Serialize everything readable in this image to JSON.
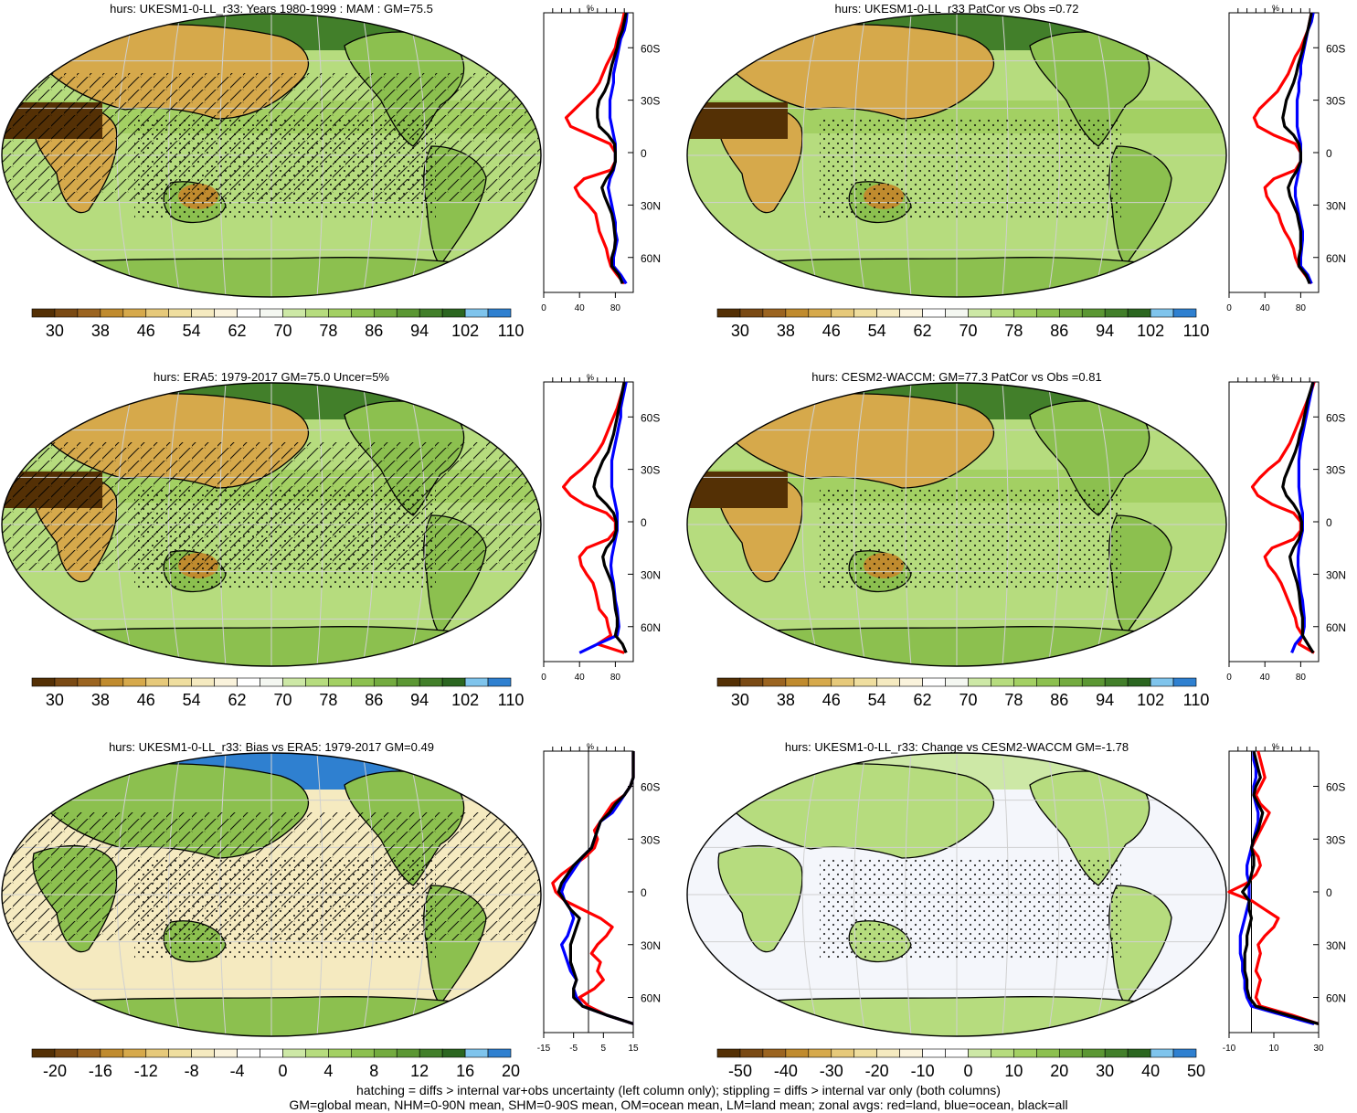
{
  "colors": {
    "abs_palette": [
      "#543005",
      "#7a4a14",
      "#9b6420",
      "#c08b2e",
      "#d6a94b",
      "#e6c97a",
      "#efde9f",
      "#f5eac0",
      "#faf3dc",
      "#ffffff",
      "#f4f7f1",
      "#cde8a6",
      "#b6dc7e",
      "#a3d063",
      "#8cc04f",
      "#73ab3f",
      "#5b9733",
      "#427f2a",
      "#2b6620",
      "#7fc4ec",
      "#2f80d0"
    ],
    "diff_palette": [
      "#543005",
      "#7a4a14",
      "#9b6420",
      "#c08b2e",
      "#d6a94b",
      "#e6c97a",
      "#efde9f",
      "#f5eac0",
      "#faf3dc",
      "#ffffff",
      "#ffffff",
      "#cde8a6",
      "#b6dc7e",
      "#a3d063",
      "#8cc04f",
      "#73ab3f",
      "#5b9733",
      "#427f2a",
      "#2b6620",
      "#7fc4ec",
      "#2f80d0"
    ],
    "land": "#ff0000",
    "ocean": "#0000ff",
    "all": "#000000"
  },
  "panels": [
    {
      "title": "hurs: UKESM1-0-LL_r33: Years 1980-1999 : MAM : GM=75.5",
      "colorbar_labels": [
        "30",
        "38",
        "46",
        "54",
        "62",
        "70",
        "78",
        "86",
        "94",
        "102",
        "110"
      ],
      "palette": "abs",
      "hatching": true,
      "stippling": true,
      "zonal_unit": "%",
      "zonal_ticks": [
        "0",
        "40",
        "80"
      ],
      "lat_labels": [
        "60N",
        "30N",
        "0",
        "30S",
        "60S"
      ]
    },
    {
      "title": "hurs: UKESM1-0-LL_r33 PatCor vs Obs =0.72",
      "colorbar_labels": [
        "30",
        "38",
        "46",
        "54",
        "62",
        "70",
        "78",
        "86",
        "94",
        "102",
        "110"
      ],
      "palette": "abs",
      "hatching": false,
      "stippling": true,
      "zonal_unit": "%",
      "zonal_ticks": [
        "0",
        "40",
        "80"
      ],
      "lat_labels": [
        "60N",
        "30N",
        "0",
        "30S",
        "60S"
      ]
    },
    {
      "title": "hurs: ERA5: 1979-2017 GM=75.0 Uncer=5%",
      "colorbar_labels": [
        "30",
        "38",
        "46",
        "54",
        "62",
        "70",
        "78",
        "86",
        "94",
        "102",
        "110"
      ],
      "palette": "abs",
      "hatching": true,
      "stippling": true,
      "zonal_unit": "%",
      "zonal_ticks": [
        "0",
        "40",
        "80"
      ],
      "lat_labels": [
        "60N",
        "30N",
        "0",
        "30S",
        "60S"
      ]
    },
    {
      "title": "hurs: CESM2-WACCM: GM=77.3 PatCor vs Obs =0.81",
      "colorbar_labels": [
        "30",
        "38",
        "46",
        "54",
        "62",
        "70",
        "78",
        "86",
        "94",
        "102",
        "110"
      ],
      "palette": "abs",
      "hatching": false,
      "stippling": true,
      "zonal_unit": "%",
      "zonal_ticks": [
        "0",
        "40",
        "80"
      ],
      "lat_labels": [
        "60N",
        "30N",
        "0",
        "30S",
        "60S"
      ]
    },
    {
      "title": "hurs: UKESM1-0-LL_r33: Bias vs ERA5: 1979-2017 GM=0.49",
      "colorbar_labels": [
        "-20",
        "-16",
        "-12",
        "-8",
        "-4",
        "0",
        "4",
        "8",
        "12",
        "16",
        "20"
      ],
      "palette": "diff",
      "hatching": true,
      "stippling": true,
      "zonal_unit": "%",
      "zonal_ticks": [
        "-15",
        "-5",
        "5",
        "15"
      ],
      "lat_labels": [
        "60N",
        "30N",
        "0",
        "30S",
        "60S"
      ]
    },
    {
      "title": "hurs: UKESM1-0-LL_r33: Change vs CESM2-WACCM GM=-1.78",
      "colorbar_labels": [
        "-50",
        "-40",
        "-30",
        "-20",
        "-10",
        "0",
        "10",
        "20",
        "30",
        "40",
        "50"
      ],
      "palette": "diff",
      "hatching": false,
      "stippling": true,
      "zonal_unit": "%",
      "zonal_ticks": [
        "-10",
        "10",
        "30"
      ],
      "lat_labels": [
        "60N",
        "30N",
        "0",
        "30S",
        "60S"
      ]
    }
  ],
  "chart_data": [
    {
      "type": "line",
      "title": "hurs: UKESM1-0-LL_r33: Years 1980-1999 : MAM : GM=75.5",
      "xlabel": "%",
      "xlim": [
        0,
        100
      ],
      "ylim": [
        -80,
        80
      ],
      "x_ticks": [
        0,
        40,
        80
      ],
      "y_ticks": [
        -60,
        -30,
        0,
        30,
        60
      ],
      "lat": [
        -75,
        -70,
        -65,
        -60,
        -55,
        -50,
        -45,
        -40,
        -35,
        -30,
        -25,
        -20,
        -15,
        -10,
        -5,
        0,
        5,
        10,
        15,
        20,
        25,
        30,
        35,
        40,
        45,
        50,
        55,
        60,
        65,
        70,
        75,
        80
      ],
      "series": [
        {
          "name": "land",
          "values": [
            90,
            82,
            75,
            72,
            70,
            66,
            62,
            60,
            58,
            50,
            40,
            35,
            45,
            75,
            80,
            80,
            74,
            52,
            30,
            25,
            35,
            45,
            55,
            62,
            66,
            70,
            75,
            80,
            82,
            85,
            88,
            90
          ]
        },
        {
          "name": "ocean",
          "values": [
            92,
            86,
            78,
            78,
            80,
            82,
            80,
            80,
            78,
            76,
            74,
            72,
            74,
            78,
            80,
            80,
            80,
            78,
            76,
            74,
            74,
            74,
            76,
            78,
            78,
            80,
            82,
            84,
            86,
            90,
            92,
            93
          ]
        },
        {
          "name": "all",
          "values": [
            88,
            84,
            76,
            76,
            79,
            80,
            79,
            78,
            76,
            72,
            68,
            65,
            70,
            77,
            80,
            80,
            79,
            72,
            62,
            60,
            60,
            62,
            68,
            72,
            74,
            76,
            79,
            82,
            84,
            88,
            90,
            92
          ]
        }
      ]
    },
    {
      "type": "line",
      "title": "hurs: UKESM1-0-LL_r33 PatCor vs Obs =0.72",
      "xlabel": "%",
      "xlim": [
        0,
        100
      ],
      "ylim": [
        -80,
        80
      ],
      "x_ticks": [
        0,
        40,
        80
      ],
      "y_ticks": [
        -60,
        -30,
        0,
        30,
        60
      ],
      "lat": [
        -75,
        -70,
        -65,
        -60,
        -55,
        -50,
        -45,
        -40,
        -35,
        -30,
        -25,
        -20,
        -15,
        -10,
        -5,
        0,
        5,
        10,
        15,
        20,
        25,
        30,
        35,
        40,
        45,
        50,
        55,
        60,
        65,
        70,
        75,
        80
      ],
      "series": [
        {
          "name": "land",
          "values": [
            92,
            85,
            78,
            74,
            72,
            68,
            62,
            58,
            55,
            48,
            42,
            40,
            50,
            74,
            80,
            80,
            74,
            50,
            32,
            28,
            34,
            44,
            54,
            60,
            66,
            70,
            74,
            80,
            84,
            88,
            90,
            92
          ]
        },
        {
          "name": "ocean",
          "values": [
            92,
            88,
            80,
            80,
            81,
            82,
            82,
            80,
            78,
            76,
            74,
            74,
            76,
            78,
            80,
            80,
            80,
            78,
            76,
            76,
            76,
            76,
            78,
            78,
            80,
            80,
            82,
            84,
            86,
            88,
            92,
            94
          ]
        },
        {
          "name": "all",
          "values": [
            90,
            86,
            78,
            78,
            80,
            80,
            80,
            78,
            76,
            72,
            68,
            66,
            70,
            76,
            80,
            80,
            78,
            72,
            62,
            60,
            62,
            64,
            68,
            72,
            75,
            77,
            80,
            83,
            85,
            88,
            90,
            92
          ]
        }
      ]
    },
    {
      "type": "line",
      "title": "hurs: ERA5: 1979-2017 GM=75.0 Uncer=5%",
      "xlabel": "%",
      "xlim": [
        0,
        100
      ],
      "ylim": [
        -80,
        80
      ],
      "x_ticks": [
        0,
        40,
        80
      ],
      "y_ticks": [
        -60,
        -30,
        0,
        30,
        60
      ],
      "lat": [
        -75,
        -70,
        -65,
        -60,
        -55,
        -50,
        -45,
        -40,
        -35,
        -30,
        -25,
        -20,
        -15,
        -10,
        -5,
        0,
        5,
        10,
        15,
        20,
        25,
        30,
        35,
        40,
        45,
        50,
        55,
        60,
        65,
        70,
        75,
        80
      ],
      "series": [
        {
          "name": "land",
          "values": [
            90,
            60,
            75,
            72,
            70,
            62,
            60,
            58,
            55,
            48,
            42,
            40,
            48,
            72,
            80,
            80,
            70,
            45,
            30,
            22,
            30,
            42,
            52,
            60,
            66,
            70,
            74,
            78,
            82,
            85,
            88,
            90
          ]
        },
        {
          "name": "ocean",
          "values": [
            40,
            60,
            82,
            84,
            83,
            82,
            80,
            79,
            78,
            76,
            75,
            76,
            78,
            80,
            82,
            82,
            82,
            80,
            78,
            76,
            76,
            76,
            76,
            78,
            80,
            82,
            84,
            86,
            86,
            88,
            90,
            92
          ]
        },
        {
          "name": "all",
          "values": [
            92,
            88,
            80,
            82,
            82,
            80,
            79,
            78,
            76,
            72,
            68,
            66,
            70,
            78,
            81,
            81,
            78,
            70,
            60,
            56,
            58,
            62,
            66,
            72,
            75,
            78,
            80,
            82,
            84,
            86,
            88,
            90
          ]
        }
      ]
    },
    {
      "type": "line",
      "title": "hurs: CESM2-WACCM: GM=77.3 PatCor vs Obs =0.81",
      "xlabel": "%",
      "xlim": [
        0,
        100
      ],
      "ylim": [
        -80,
        80
      ],
      "x_ticks": [
        0,
        40,
        80
      ],
      "y_ticks": [
        -60,
        -30,
        0,
        30,
        60
      ],
      "lat": [
        -75,
        -70,
        -65,
        -60,
        -55,
        -50,
        -45,
        -40,
        -35,
        -30,
        -25,
        -20,
        -15,
        -10,
        -5,
        0,
        5,
        10,
        15,
        20,
        25,
        30,
        35,
        40,
        45,
        50,
        55,
        60,
        65,
        70,
        75,
        80
      ],
      "series": [
        {
          "name": "land",
          "values": [
            95,
            78,
            82,
            76,
            74,
            70,
            66,
            62,
            58,
            52,
            44,
            40,
            48,
            72,
            80,
            80,
            72,
            48,
            32,
            26,
            34,
            44,
            56,
            62,
            68,
            72,
            76,
            80,
            84,
            88,
            92,
            95
          ]
        },
        {
          "name": "ocean",
          "values": [
            70,
            74,
            82,
            84,
            84,
            83,
            82,
            80,
            79,
            78,
            77,
            77,
            78,
            80,
            82,
            82,
            82,
            80,
            79,
            78,
            78,
            78,
            78,
            79,
            80,
            82,
            84,
            86,
            88,
            90,
            92,
            94
          ]
        },
        {
          "name": "all",
          "values": [
            94,
            88,
            82,
            82,
            82,
            80,
            79,
            78,
            76,
            73,
            70,
            68,
            72,
            78,
            81,
            81,
            78,
            72,
            64,
            60,
            62,
            66,
            70,
            74,
            77,
            79,
            82,
            84,
            86,
            88,
            91,
            94
          ]
        }
      ]
    },
    {
      "type": "line",
      "title": "hurs: UKESM1-0-LL_r33: Bias vs ERA5: 1979-2017 GM=0.49",
      "xlabel": "%",
      "xlim": [
        -15,
        15
      ],
      "ylim": [
        -80,
        80
      ],
      "x_ticks": [
        -15,
        -5,
        5,
        15
      ],
      "y_ticks": [
        -60,
        -30,
        0,
        30,
        60
      ],
      "lat": [
        -75,
        -70,
        -65,
        -60,
        -55,
        -50,
        -45,
        -40,
        -35,
        -30,
        -25,
        -20,
        -15,
        -10,
        -5,
        0,
        5,
        10,
        15,
        20,
        25,
        30,
        35,
        40,
        45,
        50,
        55,
        60,
        65,
        70,
        75,
        80
      ],
      "series": [
        {
          "name": "land",
          "values": [
            15,
            6,
            0,
            -3,
            2,
            5,
            3,
            4,
            1,
            3,
            6,
            8,
            4,
            -2,
            -8,
            -11,
            -12,
            -9,
            -5,
            -1,
            2,
            3,
            2,
            4,
            6,
            8,
            12,
            14,
            15,
            15,
            15,
            15
          ]
        },
        {
          "name": "ocean",
          "values": [
            15,
            6,
            -2,
            -4,
            -5,
            -4,
            -6,
            -7,
            -8,
            -9,
            -7,
            -6,
            -5,
            -6,
            -8,
            -9,
            -8,
            -6,
            -4,
            -2,
            1,
            2,
            3,
            4,
            8,
            10,
            12,
            14,
            15,
            15,
            15,
            15
          ]
        },
        {
          "name": "all",
          "values": [
            15,
            6,
            -2,
            -5,
            -5,
            -4,
            -5,
            -6,
            -6,
            -6,
            -5,
            -4,
            -3,
            -6,
            -8,
            -10,
            -9,
            -7,
            -5,
            -2,
            1,
            2,
            3,
            4,
            7,
            9,
            12,
            14,
            15,
            15,
            15,
            15
          ]
        }
      ]
    },
    {
      "type": "line",
      "title": "hurs: UKESM1-0-LL_r33: Change vs CESM2-WACCM GM=-1.78",
      "xlabel": "%",
      "xlim": [
        -10,
        30
      ],
      "ylim": [
        -80,
        80
      ],
      "x_ticks": [
        -10,
        10,
        30
      ],
      "y_ticks": [
        -60,
        -30,
        0,
        30,
        60
      ],
      "lat": [
        -75,
        -70,
        -65,
        -60,
        -55,
        -50,
        -45,
        -40,
        -35,
        -30,
        -25,
        -20,
        -15,
        -10,
        -5,
        0,
        5,
        10,
        15,
        20,
        25,
        30,
        35,
        40,
        45,
        50,
        55,
        60,
        65,
        70,
        75,
        80
      ],
      "series": [
        {
          "name": "land",
          "values": [
            30,
            18,
            4,
            2,
            3,
            4,
            2,
            3,
            4,
            3,
            6,
            10,
            12,
            6,
            0,
            -10,
            -2,
            2,
            4,
            3,
            0,
            2,
            4,
            6,
            8,
            4,
            2,
            4,
            6,
            5,
            4,
            3
          ]
        },
        {
          "name": "ocean",
          "values": [
            28,
            14,
            0,
            -2,
            -3,
            -3,
            -4,
            -4,
            -5,
            -5,
            -5,
            -4,
            -3,
            -2,
            -1,
            -1,
            -1,
            -2,
            -2,
            -1,
            0,
            1,
            2,
            3,
            3,
            2,
            1,
            1,
            2,
            2,
            1,
            1
          ]
        },
        {
          "name": "all",
          "values": [
            30,
            16,
            2,
            -1,
            -2,
            -2,
            -3,
            -3,
            -3,
            -2,
            -2,
            -1,
            0,
            -1,
            -1,
            -4,
            -1,
            0,
            1,
            1,
            0,
            1,
            3,
            4,
            5,
            3,
            1,
            2,
            4,
            3,
            2,
            1
          ]
        }
      ]
    }
  ],
  "footer": {
    "line1": "hatching = diffs > internal var+obs uncertainty (left column only); stippling = diffs > internal var only (both columns)",
    "line2": "GM=global mean, NHM=0-90N mean, SHM=0-90S mean, OM=ocean mean, LM=land mean; zonal avgs: red=land, blue=ocean, black=all"
  }
}
